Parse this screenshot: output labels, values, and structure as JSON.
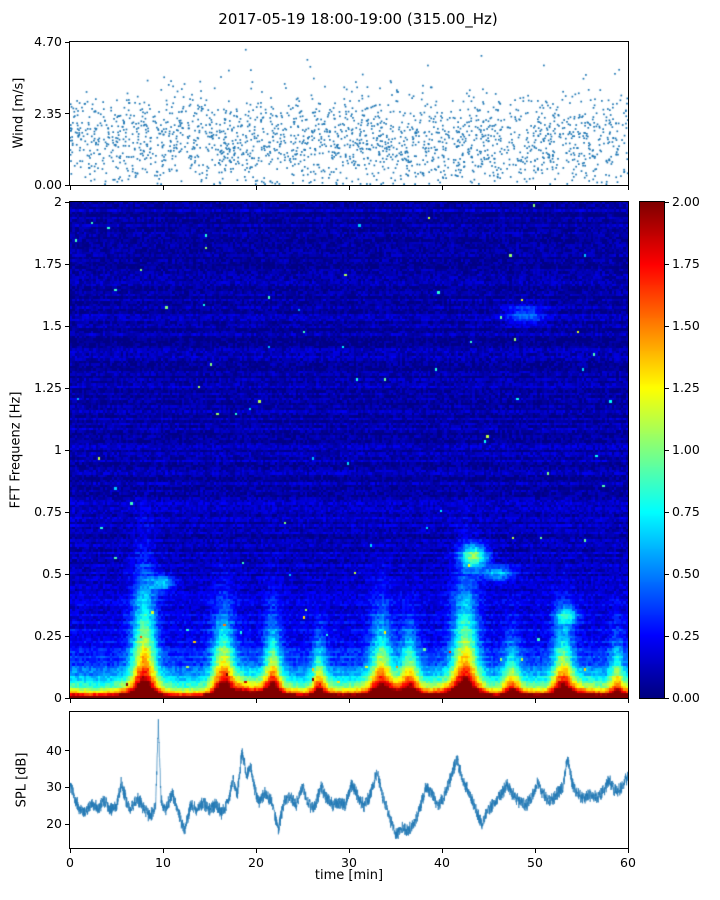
{
  "figure": {
    "title": "2017-05-19 18:00-19:00 (315.00_Hz)",
    "background": "#ffffff",
    "accent_color": "#1f77b4"
  },
  "chart_data": [
    {
      "id": "wind",
      "type": "scatter",
      "ylabel": "Wind [m/s]",
      "ylim": [
        0,
        4.7
      ],
      "yticks": [
        {
          "v": 0,
          "label": "0.00"
        },
        {
          "v": 2.35,
          "label": "2.35"
        },
        {
          "v": 4.7,
          "label": "4.70"
        }
      ],
      "xlim": [
        0,
        60
      ],
      "xticks": [
        0,
        10,
        20,
        30,
        40,
        50,
        60
      ],
      "marker_color": "#1f77b4",
      "grid": false,
      "points_spec": {
        "seed": 11,
        "n": 2100,
        "mean": 1.45,
        "std": 0.78,
        "tail_prob": 0.05,
        "tail_extra": 1.6,
        "min": 0.03,
        "max": 4.69
      }
    },
    {
      "id": "spectrogram",
      "type": "heatmap",
      "ylabel": "FFT Frequenz [Hz]",
      "ylim": [
        0,
        2
      ],
      "yticks": [
        {
          "v": 0,
          "label": "0"
        },
        {
          "v": 0.25,
          "label": "0.25"
        },
        {
          "v": 0.5,
          "label": "0.5"
        },
        {
          "v": 0.75,
          "label": "0.75"
        },
        {
          "v": 1,
          "label": "1"
        },
        {
          "v": 1.25,
          "label": "1.25"
        },
        {
          "v": 1.5,
          "label": "1.5"
        },
        {
          "v": 1.75,
          "label": "1.75"
        },
        {
          "v": 2,
          "label": "2"
        }
      ],
      "xlim": [
        0,
        60
      ],
      "xticks": [
        0,
        10,
        20,
        30,
        40,
        50,
        60
      ],
      "colormap": "jet",
      "vmin": 0,
      "vmax": 2,
      "colorbar": {
        "ticks": [
          {
            "v": 0,
            "label": "0.00"
          },
          {
            "v": 0.25,
            "label": "0.25"
          },
          {
            "v": 0.5,
            "label": "0.50"
          },
          {
            "v": 0.75,
            "label": "0.75"
          },
          {
            "v": 1,
            "label": "1.00"
          },
          {
            "v": 1.25,
            "label": "1.25"
          },
          {
            "v": 1.5,
            "label": "1.50"
          },
          {
            "v": 1.75,
            "label": "1.75"
          },
          {
            "v": 2,
            "label": "2.00"
          }
        ]
      },
      "field_spec": {
        "seed": 5,
        "nt": 240,
        "nf": 200,
        "base": 0.08,
        "row_noise": 0.07,
        "cell_noise": 0.09,
        "speckle_prob": 0.002,
        "broad_low": {
          "amp": 0.3,
          "scale": 0.3
        },
        "floor_band": {
          "amp": 0.9,
          "scale": 0.012
        },
        "bottom_band": {
          "scale": 0.06,
          "amp_anchors": [
            [
              0,
              1.2
            ],
            [
              2,
              1.0
            ],
            [
              4,
              1.1
            ],
            [
              6,
              1.5
            ],
            [
              8,
              1.7
            ],
            [
              10,
              1.3
            ],
            [
              12,
              1.0
            ],
            [
              14,
              1.1
            ],
            [
              16,
              1.5
            ],
            [
              17.5,
              1.9
            ],
            [
              18.5,
              2.2
            ],
            [
              20,
              2.0
            ],
            [
              22,
              1.9
            ],
            [
              23,
              1.5
            ],
            [
              25,
              1.2
            ],
            [
              27,
              1.6
            ],
            [
              29,
              1.3
            ],
            [
              31,
              1.4
            ],
            [
              33,
              1.8
            ],
            [
              35,
              1.9
            ],
            [
              37,
              1.7
            ],
            [
              38.5,
              1.5
            ],
            [
              40,
              1.7
            ],
            [
              41.5,
              2.0
            ],
            [
              43,
              1.9
            ],
            [
              44.5,
              1.5
            ],
            [
              46,
              1.2
            ],
            [
              47.5,
              1.6
            ],
            [
              49,
              1.4
            ],
            [
              51,
              1.3
            ],
            [
              52.5,
              1.7
            ],
            [
              54,
              1.8
            ],
            [
              56,
              1.5
            ],
            [
              58,
              1.3
            ],
            [
              60,
              1.5
            ]
          ]
        },
        "plumes": [
          [
            8,
            1.3,
            0.42,
            1.15
          ],
          [
            16.5,
            1.2,
            0.3,
            1.05
          ],
          [
            21.8,
            0.9,
            0.28,
            0.9
          ],
          [
            26.8,
            0.7,
            0.22,
            0.7
          ],
          [
            33.5,
            1.2,
            0.3,
            0.9
          ],
          [
            36.5,
            1.0,
            0.25,
            0.8
          ],
          [
            42.5,
            1.4,
            0.4,
            1.1
          ],
          [
            47.5,
            0.9,
            0.22,
            0.6
          ],
          [
            53,
            1.1,
            0.28,
            0.9
          ],
          [
            58.8,
            0.8,
            0.22,
            0.6
          ]
        ],
        "patches": [
          [
            43.5,
            0.57,
            1.4,
            0.045,
            0.85
          ],
          [
            46,
            0.5,
            1.8,
            0.03,
            0.5
          ],
          [
            49,
            1.55,
            2.2,
            0.04,
            0.35
          ],
          [
            53.5,
            0.33,
            1.2,
            0.035,
            0.5
          ],
          [
            10,
            0.46,
            1.2,
            0.03,
            0.5
          ]
        ]
      }
    },
    {
      "id": "spl",
      "type": "line",
      "ylabel": "SPL [dB]",
      "xlabel": "time [min]",
      "ylim": [
        13.5,
        50.5
      ],
      "yticks": [
        {
          "v": 20,
          "label": "20"
        },
        {
          "v": 30,
          "label": "30"
        },
        {
          "v": 40,
          "label": "40"
        }
      ],
      "xlim": [
        0,
        60
      ],
      "xticks": [
        {
          "v": 0,
          "label": "0"
        },
        {
          "v": 10,
          "label": "10"
        },
        {
          "v": 20,
          "label": "20"
        },
        {
          "v": 30,
          "label": "30"
        },
        {
          "v": 40,
          "label": "40"
        },
        {
          "v": 50,
          "label": "50"
        },
        {
          "v": 60,
          "label": "60"
        }
      ],
      "line_color": "#1f77b4",
      "noise": {
        "seed": 23,
        "samples": 3600,
        "amp": 2.1
      },
      "anchors": [
        [
          0,
          31
        ],
        [
          0.5,
          27
        ],
        [
          1,
          24.5
        ],
        [
          1.7,
          23
        ],
        [
          2.3,
          26
        ],
        [
          3,
          24
        ],
        [
          3.7,
          26.5
        ],
        [
          4.3,
          24
        ],
        [
          5,
          25
        ],
        [
          5.5,
          31
        ],
        [
          6.1,
          26
        ],
        [
          6.6,
          24
        ],
        [
          7.3,
          27
        ],
        [
          8,
          24
        ],
        [
          8.6,
          22
        ],
        [
          9.2,
          25
        ],
        [
          9.5,
          47
        ],
        [
          9.8,
          26
        ],
        [
          10.3,
          24
        ],
        [
          11,
          28.5
        ],
        [
          11.6,
          24
        ],
        [
          12.3,
          18
        ],
        [
          13,
          25
        ],
        [
          13.7,
          24
        ],
        [
          14.3,
          26
        ],
        [
          15,
          24
        ],
        [
          15.7,
          25.5
        ],
        [
          16.3,
          23
        ],
        [
          17,
          26
        ],
        [
          17.5,
          32
        ],
        [
          18,
          28
        ],
        [
          18.5,
          40
        ],
        [
          19,
          33
        ],
        [
          19.4,
          36
        ],
        [
          19.8,
          30
        ],
        [
          20.3,
          26
        ],
        [
          21,
          28.5
        ],
        [
          21.7,
          26
        ],
        [
          22.4,
          18.5
        ],
        [
          23,
          26
        ],
        [
          23.7,
          27.5
        ],
        [
          24.3,
          25
        ],
        [
          25,
          30
        ],
        [
          25.6,
          26
        ],
        [
          26.2,
          24
        ],
        [
          27,
          30
        ],
        [
          27.6,
          27
        ],
        [
          28.3,
          25
        ],
        [
          29,
          26
        ],
        [
          29.6,
          25
        ],
        [
          30.3,
          31
        ],
        [
          31,
          27
        ],
        [
          31.6,
          25
        ],
        [
          32.3,
          28
        ],
        [
          33,
          34
        ],
        [
          33.6,
          28
        ],
        [
          34.3,
          22
        ],
        [
          35,
          17
        ],
        [
          35.7,
          19
        ],
        [
          36.3,
          18
        ],
        [
          37,
          20
        ],
        [
          37.7,
          25
        ],
        [
          38.3,
          30
        ],
        [
          39,
          28
        ],
        [
          39.6,
          25
        ],
        [
          40.3,
          28
        ],
        [
          41,
          33
        ],
        [
          41.6,
          38
        ],
        [
          42.2,
          32
        ],
        [
          43,
          28
        ],
        [
          43.6,
          24
        ],
        [
          44.3,
          20
        ],
        [
          45,
          24
        ],
        [
          45.7,
          26
        ],
        [
          46.3,
          28
        ],
        [
          47,
          30.5
        ],
        [
          47.7,
          28
        ],
        [
          48.3,
          26
        ],
        [
          49,
          25
        ],
        [
          49.6,
          27
        ],
        [
          50.3,
          31
        ],
        [
          51,
          28
        ],
        [
          51.6,
          26
        ],
        [
          52.3,
          28
        ],
        [
          53,
          30
        ],
        [
          53.5,
          38
        ],
        [
          54,
          31
        ],
        [
          54.6,
          28
        ],
        [
          55.3,
          27
        ],
        [
          56,
          28
        ],
        [
          56.7,
          27
        ],
        [
          57.3,
          29
        ],
        [
          58,
          32
        ],
        [
          58.6,
          29
        ],
        [
          59.3,
          30
        ],
        [
          60,
          33
        ]
      ]
    }
  ]
}
